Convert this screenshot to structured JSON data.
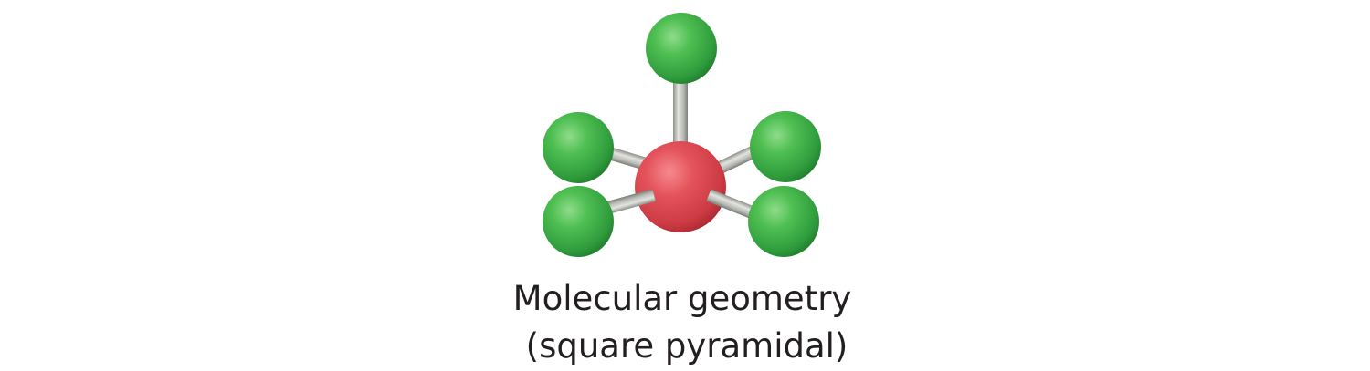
{
  "figure": {
    "caption_line1": "Molecular geometry",
    "caption_line2": "(square pyramidal)"
  },
  "molecule": {
    "geometry": "square pyramidal",
    "central_atom_color": "#e0464f",
    "ligand_atom_color": "#3cab46",
    "bond_color": "#c8cac4",
    "ligand_count": 5
  }
}
